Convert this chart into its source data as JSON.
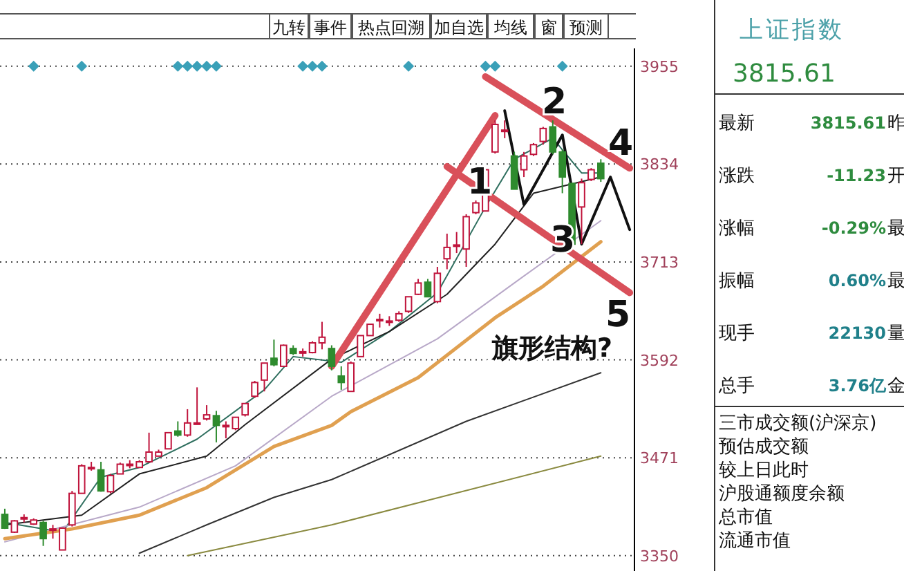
{
  "chart_data": [
    {
      "type": "candlestick",
      "categories": [
        null,
        null,
        null,
        null,
        null,
        null,
        null,
        null,
        null,
        null,
        null,
        null,
        null,
        null,
        null,
        null,
        null,
        null,
        null,
        null,
        null,
        null,
        null,
        null,
        null,
        null,
        null,
        null,
        null,
        null,
        null,
        null,
        null,
        null,
        null,
        null,
        null,
        null,
        null,
        null,
        null,
        null,
        null,
        null,
        null,
        null,
        null,
        null,
        null,
        null,
        null,
        null,
        null,
        null,
        null,
        null,
        null,
        null,
        null,
        null,
        null,
        null,
        null,
        null,
        null,
        null
      ],
      "ohlc": [
        [
          3401,
          3408,
          3383,
          3384
        ],
        [
          3379,
          3394,
          3378,
          3393
        ],
        [
          3396,
          3401,
          3391,
          3397
        ],
        [
          3389,
          3396,
          3388,
          3394
        ],
        [
          3391,
          3393,
          3362,
          3371
        ],
        [
          3382,
          3388,
          3371,
          3383
        ],
        [
          3357,
          3384,
          3357,
          3384
        ],
        [
          3388,
          3430,
          3386,
          3427
        ],
        [
          3427,
          3463,
          3427,
          3461
        ],
        [
          3458,
          3466,
          3455,
          3459
        ],
        [
          3456,
          3466,
          3429,
          3430
        ],
        [
          3429,
          3451,
          3427,
          3449
        ],
        [
          3451,
          3465,
          3451,
          3463
        ],
        [
          3462,
          3468,
          3458,
          3463
        ],
        [
          3459,
          3468,
          3459,
          3466
        ],
        [
          3466,
          3502,
          3465,
          3478
        ],
        [
          3473,
          3481,
          3473,
          3478
        ],
        [
          3482,
          3502,
          3482,
          3502
        ],
        [
          3504,
          3516,
          3497,
          3499
        ],
        [
          3499,
          3531,
          3497,
          3514
        ],
        [
          3513,
          3558,
          3512,
          3514
        ],
        [
          3519,
          3536,
          3517,
          3524
        ],
        [
          3523,
          3529,
          3490,
          3511
        ],
        [
          3511,
          3516,
          3495,
          3510
        ],
        [
          3507,
          3521,
          3505,
          3521
        ],
        [
          3524,
          3538,
          3522,
          3538
        ],
        [
          3547,
          3566,
          3545,
          3564
        ],
        [
          3567,
          3588,
          3553,
          3588
        ],
        [
          3594,
          3617,
          3584,
          3586
        ],
        [
          3584,
          3611,
          3584,
          3610
        ],
        [
          3606,
          3610,
          3598,
          3600
        ],
        [
          3601,
          3606,
          3596,
          3602
        ],
        [
          3601,
          3615,
          3600,
          3613
        ],
        [
          3613,
          3639,
          3605,
          3620
        ],
        [
          3606,
          3610,
          3579,
          3584
        ],
        [
          3572,
          3584,
          3555,
          3564
        ],
        [
          3553,
          3590,
          3553,
          3588
        ],
        [
          3596,
          3622,
          3596,
          3622
        ],
        [
          3622,
          3636,
          3622,
          3636
        ],
        [
          3641,
          3649,
          3632,
          3642
        ],
        [
          3639,
          3646,
          3634,
          3640
        ],
        [
          3641,
          3652,
          3639,
          3649
        ],
        [
          3652,
          3670,
          3650,
          3670
        ],
        [
          3673,
          3692,
          3672,
          3687
        ],
        [
          3688,
          3692,
          3670,
          3670
        ],
        [
          3664,
          3707,
          3662,
          3699
        ],
        [
          3717,
          3748,
          3704,
          3731
        ],
        [
          3733,
          3750,
          3724,
          3734
        ],
        [
          3729,
          3772,
          3707,
          3769
        ],
        [
          3774,
          3789,
          3772,
          3786
        ],
        [
          3776,
          3827,
          3776,
          3827
        ],
        [
          3849,
          3888,
          3847,
          3883
        ],
        [
          3875,
          3888,
          3866,
          3876
        ],
        [
          3844,
          3849,
          3803,
          3803
        ],
        [
          3827,
          3849,
          3818,
          3844
        ],
        [
          3846,
          3860,
          3844,
          3858
        ],
        [
          3862,
          3880,
          3858,
          3878
        ],
        [
          3880,
          3888,
          3846,
          3849
        ],
        [
          3849,
          3852,
          3798,
          3818
        ],
        [
          3810,
          3811,
          3733,
          3735
        ],
        [
          3781,
          3816,
          3735,
          3811
        ],
        [
          3815,
          3829,
          3813,
          3827
        ],
        [
          3835,
          3840,
          3812,
          3816
        ],
        null,
        null,
        null
      ],
      "colors": [
        "#2e8b2e",
        "#c0143c",
        "#c0143c",
        "#c0143c",
        "#2e8b2e",
        "#c0143c",
        "#c0143c",
        "#c0143c",
        "#c0143c",
        "#c0143c",
        "#2e8b2e",
        "#c0143c",
        "#c0143c",
        "#c0143c",
        "#c0143c",
        "#c0143c",
        "#c0143c",
        "#c0143c",
        "#2e8b2e",
        "#c0143c",
        "#c0143c",
        "#c0143c",
        "#2e8b2e",
        "#c0143c",
        "#c0143c",
        "#c0143c",
        "#c0143c",
        "#c0143c",
        "#2e8b2e",
        "#c0143c",
        "#2e8b2e",
        "#c0143c",
        "#c0143c",
        "#c0143c",
        "#2e8b2e",
        "#2e8b2e",
        "#c0143c",
        "#c0143c",
        "#c0143c",
        "#c0143c",
        "#c0143c",
        "#c0143c",
        "#c0143c",
        "#c0143c",
        "#2e8b2e",
        "#c0143c",
        "#c0143c",
        "#c0143c",
        "#c0143c",
        "#c0143c",
        "#c0143c",
        "#c0143c",
        "#c0143c",
        "#2e8b2e",
        "#c0143c",
        "#c0143c",
        "#c0143c",
        "#2e8b2e",
        "#2e8b2e",
        "#2e8b2e",
        "#c0143c",
        "#c0143c",
        "#2e8b2e",
        null,
        null,
        null
      ],
      "ylim": [
        3331,
        3977
      ],
      "yticks": [
        3955,
        3834,
        3713,
        3592,
        3471,
        3350
      ],
      "grid": "y",
      "series": [
        {
          "type": "line",
          "color": "#2f6f5f",
          "values": [
            3391,
            null,
            null,
            null,
            null,
            null,
            3379,
            null,
            null,
            null,
            3447,
            null,
            null,
            null,
            3459,
            null,
            null,
            null,
            null,
            null,
            3494,
            null,
            null,
            null,
            null,
            null,
            null,
            3555,
            null,
            null,
            3596,
            null,
            null,
            null,
            null,
            3589,
            null,
            null,
            null,
            null,
            3627,
            null,
            null,
            null,
            null,
            3675,
            null,
            null,
            null,
            null,
            3781,
            null,
            null,
            3840,
            null,
            null,
            null,
            3866,
            null,
            null,
            3823,
            null,
            3823,
            null,
            null,
            null
          ]
        },
        {
          "type": "line",
          "color": "#222222",
          "values": [
            3388,
            null,
            null,
            null,
            null,
            null,
            null,
            null,
            3400,
            null,
            null,
            null,
            null,
            null,
            3451,
            null,
            null,
            null,
            null,
            null,
            null,
            3473,
            null,
            null,
            null,
            3512,
            null,
            null,
            null,
            null,
            null,
            null,
            null,
            null,
            3593,
            null,
            null,
            null,
            null,
            null,
            3627,
            null,
            null,
            null,
            null,
            null,
            3673,
            null,
            null,
            null,
            null,
            3735,
            null,
            null,
            null,
            3798,
            null,
            null,
            null,
            null,
            null,
            null,
            3818,
            null,
            null,
            null
          ]
        },
        {
          "type": "line",
          "color": "#b8a8c8",
          "values": [
            3367,
            null,
            null,
            null,
            null,
            null,
            null,
            null,
            null,
            null,
            null,
            null,
            null,
            null,
            3410,
            null,
            null,
            null,
            null,
            null,
            null,
            null,
            null,
            null,
            3461,
            null,
            null,
            null,
            null,
            null,
            null,
            null,
            null,
            null,
            3547,
            null,
            null,
            null,
            null,
            null,
            null,
            null,
            null,
            null,
            null,
            3618,
            null,
            null,
            null,
            null,
            null,
            null,
            null,
            3687,
            null,
            null,
            null,
            null,
            null,
            null,
            null,
            null,
            3764,
            null,
            null,
            null
          ]
        },
        {
          "type": "line",
          "color": "#e0a050",
          "values": [
            3371,
            null,
            null,
            null,
            null,
            null,
            null,
            3383,
            null,
            null,
            null,
            null,
            null,
            null,
            3400,
            null,
            null,
            null,
            null,
            null,
            null,
            3434,
            null,
            null,
            null,
            null,
            null,
            null,
            3485,
            null,
            null,
            null,
            null,
            null,
            3511,
            null,
            3528,
            null,
            null,
            null,
            null,
            null,
            null,
            3570,
            null,
            null,
            null,
            null,
            null,
            null,
            null,
            3644,
            null,
            null,
            null,
            null,
            3683,
            null,
            null,
            null,
            null,
            null,
            3738,
            null,
            null,
            null
          ]
        },
        {
          "type": "line",
          "color": "#333333",
          "values": [
            null,
            null,
            null,
            null,
            null,
            null,
            null,
            null,
            null,
            null,
            null,
            null,
            null,
            null,
            3353,
            null,
            null,
            null,
            null,
            null,
            null,
            3388,
            null,
            null,
            null,
            null,
            null,
            null,
            3422,
            null,
            null,
            null,
            null,
            null,
            3444,
            null,
            null,
            null,
            null,
            null,
            null,
            null,
            null,
            null,
            null,
            null,
            null,
            null,
            3516,
            null,
            null,
            null,
            null,
            null,
            null,
            null,
            null,
            null,
            null,
            null,
            null,
            null,
            3576,
            null,
            null,
            null
          ]
        },
        {
          "type": "line",
          "color": "#8a8a40",
          "values": [
            null,
            null,
            null,
            null,
            null,
            null,
            null,
            null,
            null,
            null,
            null,
            null,
            null,
            null,
            null,
            null,
            null,
            null,
            null,
            3350,
            null,
            null,
            null,
            null,
            null,
            null,
            null,
            null,
            null,
            null,
            null,
            null,
            null,
            null,
            3388,
            null,
            null,
            null,
            null,
            null,
            null,
            null,
            null,
            null,
            null,
            null,
            null,
            null,
            null,
            null,
            null,
            null,
            null,
            null,
            null,
            null,
            null,
            null,
            null,
            null,
            null,
            null,
            3473,
            null,
            null,
            null
          ]
        },
        {
          "type": "line",
          "color": "#d9505a",
          "values": [
            null,
            null,
            null,
            null,
            null,
            null,
            null,
            null,
            null,
            null,
            null,
            null,
            null,
            null,
            null,
            null,
            null,
            null,
            null,
            null,
            null,
            null,
            null,
            null,
            null,
            null,
            null,
            null,
            null,
            null,
            null,
            null,
            null,
            null,
            3584,
            null,
            null,
            null,
            null,
            null,
            null,
            null,
            null,
            null,
            null,
            null,
            null,
            null,
            null,
            null,
            null,
            3894,
            null,
            null,
            null,
            null,
            null,
            null,
            null,
            null,
            null,
            null,
            null,
            null,
            null,
            null
          ]
        },
        {
          "type": "line",
          "color": "#d9505a",
          "values": [
            null,
            null,
            null,
            null,
            null,
            null,
            null,
            null,
            null,
            null,
            null,
            null,
            null,
            null,
            null,
            null,
            null,
            null,
            null,
            null,
            null,
            null,
            null,
            null,
            null,
            null,
            null,
            null,
            null,
            null,
            null,
            null,
            null,
            null,
            null,
            null,
            null,
            null,
            null,
            null,
            null,
            null,
            null,
            null,
            null,
            null,
            3831,
            null,
            null,
            null,
            null,
            null,
            null,
            null,
            null,
            null,
            null,
            null,
            null,
            null,
            null,
            null,
            null,
            null,
            null,
            3675
          ]
        },
        {
          "type": "line",
          "color": "#d9505a",
          "values": [
            null,
            null,
            null,
            null,
            null,
            null,
            null,
            null,
            null,
            null,
            null,
            null,
            null,
            null,
            null,
            null,
            null,
            null,
            null,
            null,
            null,
            null,
            null,
            null,
            null,
            null,
            null,
            null,
            null,
            null,
            null,
            null,
            null,
            null,
            null,
            null,
            null,
            null,
            null,
            null,
            null,
            null,
            null,
            null,
            null,
            null,
            null,
            null,
            null,
            null,
            3942,
            null,
            null,
            null,
            null,
            null,
            null,
            null,
            null,
            null,
            null,
            null,
            null,
            null,
            null,
            3829
          ]
        },
        {
          "type": "line",
          "color": "#111111",
          "values": [
            null,
            null,
            null,
            null,
            null,
            null,
            null,
            null,
            null,
            null,
            null,
            null,
            null,
            null,
            null,
            null,
            null,
            null,
            null,
            null,
            null,
            null,
            null,
            null,
            null,
            null,
            null,
            null,
            null,
            null,
            null,
            null,
            null,
            null,
            null,
            null,
            null,
            null,
            null,
            null,
            null,
            null,
            null,
            null,
            null,
            null,
            null,
            null,
            null,
            null,
            null,
            null,
            3900,
            null,
            3784,
            null,
            null,
            null,
            3870,
            null,
            3735,
            null,
            null,
            3818,
            null,
            3753
          ]
        },
        {
          "type": "scatter",
          "marker": "diamond",
          "color": "#3aa0b8",
          "values": [
            null,
            null,
            null,
            3955,
            null,
            null,
            null,
            null,
            3955,
            null,
            null,
            null,
            null,
            null,
            null,
            null,
            null,
            null,
            3955,
            3955,
            3955,
            3955,
            3955,
            null,
            null,
            null,
            null,
            null,
            null,
            null,
            null,
            3955,
            3955,
            3955,
            null,
            null,
            null,
            null,
            null,
            null,
            null,
            null,
            3955,
            null,
            null,
            null,
            null,
            null,
            null,
            null,
            3955,
            3955,
            null,
            null,
            null,
            null,
            null,
            null,
            3955,
            null,
            null,
            null,
            null,
            null,
            null,
            null
          ]
        }
      ],
      "annotations": [
        "1",
        "2",
        "3",
        "4",
        "5",
        "旗形结构?",
        "九转",
        "事件",
        "热点回溯",
        "加自选",
        "均线",
        "窗",
        "预测"
      ]
    },
    {
      "type": "other",
      "title": "上证指数",
      "annotations": [
        "3815.61",
        "最新",
        "3815.61",
        "昨",
        "涨跌",
        "-11.23",
        "开",
        "涨幅",
        "-0.29%",
        "最",
        "振幅",
        "0.60%",
        "最",
        "现手",
        "22130",
        "量",
        "总手",
        "3.76亿",
        "金",
        "三市成交额(沪深京)",
        "预估成交额",
        "较上日此时",
        "沪股通额度余额",
        "总市值",
        "流通市值"
      ]
    }
  ]
}
